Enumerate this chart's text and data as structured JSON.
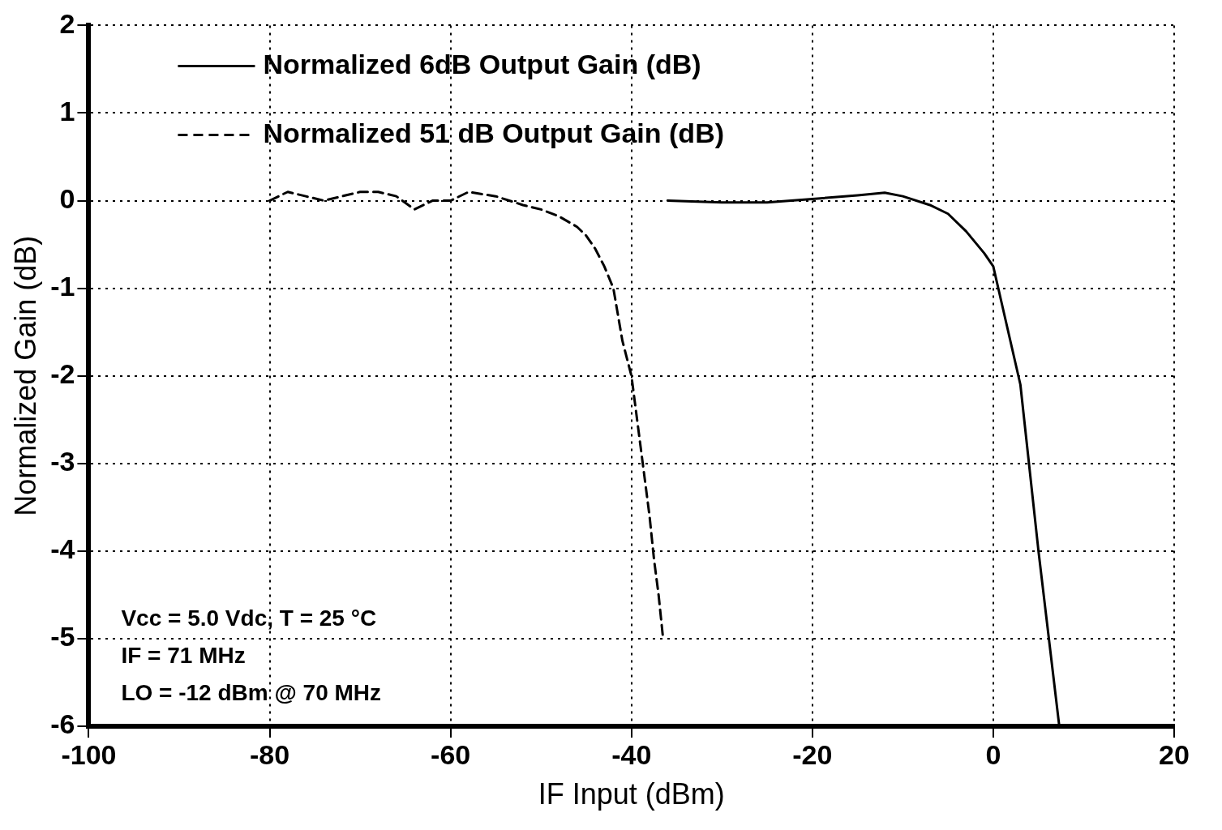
{
  "chart_data": {
    "type": "line",
    "xlabel": "IF Input (dBm)",
    "ylabel": "Normalized Gain (dB)",
    "xlim": [
      -100,
      20
    ],
    "xticks": [
      -100,
      -80,
      -60,
      -40,
      -20,
      0,
      20
    ],
    "ylim": [
      -6,
      2
    ],
    "yticks": [
      -6,
      -5,
      -4,
      -3,
      -2,
      -1,
      0,
      1,
      2
    ],
    "grid": true,
    "legend": "top left",
    "marker": "none",
    "annotations": [
      "Vcc = 5.0 Vdc, T = 25 °C",
      "IF = 71 MHz",
      "LO = -12 dBm @ 70 MHz"
    ],
    "series": [
      {
        "name": "Normalized 6dB Output Gain (dB)",
        "color": "#000000",
        "line_style": "solid",
        "x": [
          -36,
          -30,
          -25,
          -20,
          -15,
          -12,
          -10,
          -7,
          -5,
          -3,
          -1,
          0,
          1,
          3,
          5,
          7.3
        ],
        "values": [
          0,
          -0.02,
          -0.02,
          0.02,
          0.06,
          0.09,
          0.05,
          -0.05,
          -0.15,
          -0.35,
          -0.6,
          -0.75,
          -1.2,
          -2.1,
          -4,
          -6
        ]
      },
      {
        "name": "Normalized 51 dB Output Gain (dB)",
        "color": "#000000",
        "line_style": "dashed",
        "x": [
          -80,
          -78,
          -76,
          -74,
          -72,
          -70,
          -68,
          -66,
          -64,
          -62,
          -60,
          -58,
          -55,
          -52,
          -50,
          -48,
          -46,
          -45,
          -44,
          -43,
          -42,
          -41.5,
          -41,
          -40.5,
          -40,
          -39.5,
          -39,
          -38.5,
          -38,
          -37.5,
          -37,
          -36.5
        ],
        "values": [
          0,
          0.1,
          0.05,
          0,
          0.05,
          0.1,
          0.1,
          0.05,
          -0.1,
          0,
          0,
          0.1,
          0.05,
          -0.05,
          -0.1,
          -0.18,
          -0.3,
          -0.4,
          -0.55,
          -0.75,
          -1,
          -1.3,
          -1.6,
          -1.8,
          -2,
          -2.4,
          -2.8,
          -3.2,
          -3.6,
          -4.1,
          -4.5,
          -5
        ]
      }
    ]
  }
}
